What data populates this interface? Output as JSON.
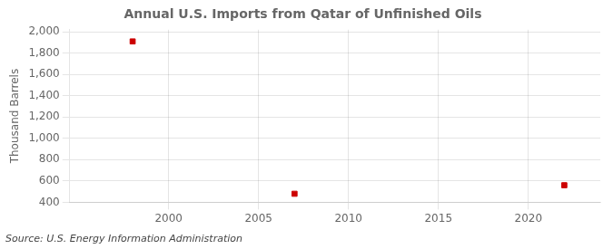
{
  "chart_data": {
    "type": "scatter",
    "title": "Annual U.S. Imports from Qatar of Unfinished Oils",
    "y_label": "Thousand Barrels",
    "annotations": [
      "Source: U.S. Energy Information Administration"
    ],
    "x": [
      1998,
      2007,
      2022
    ],
    "values": [
      1910,
      480,
      560
    ],
    "color": "#cc0000",
    "marker": "square",
    "xlim": [
      1994.5,
      2024
    ],
    "xticks": [
      2000,
      2005,
      2010,
      2015,
      2020
    ],
    "ylim": [
      400,
      2020
    ],
    "yticks": [
      400,
      600,
      800,
      {
        "value": 1000,
        "label": "1,000"
      },
      {
        "value": 1200,
        "label": "1,200"
      },
      {
        "value": 1400,
        "label": "1,400"
      },
      {
        "value": 1600,
        "label": "1,600"
      },
      {
        "value": 1800,
        "label": "1,800"
      },
      {
        "value": 2000,
        "label": "2,000"
      }
    ],
    "grid": true
  }
}
